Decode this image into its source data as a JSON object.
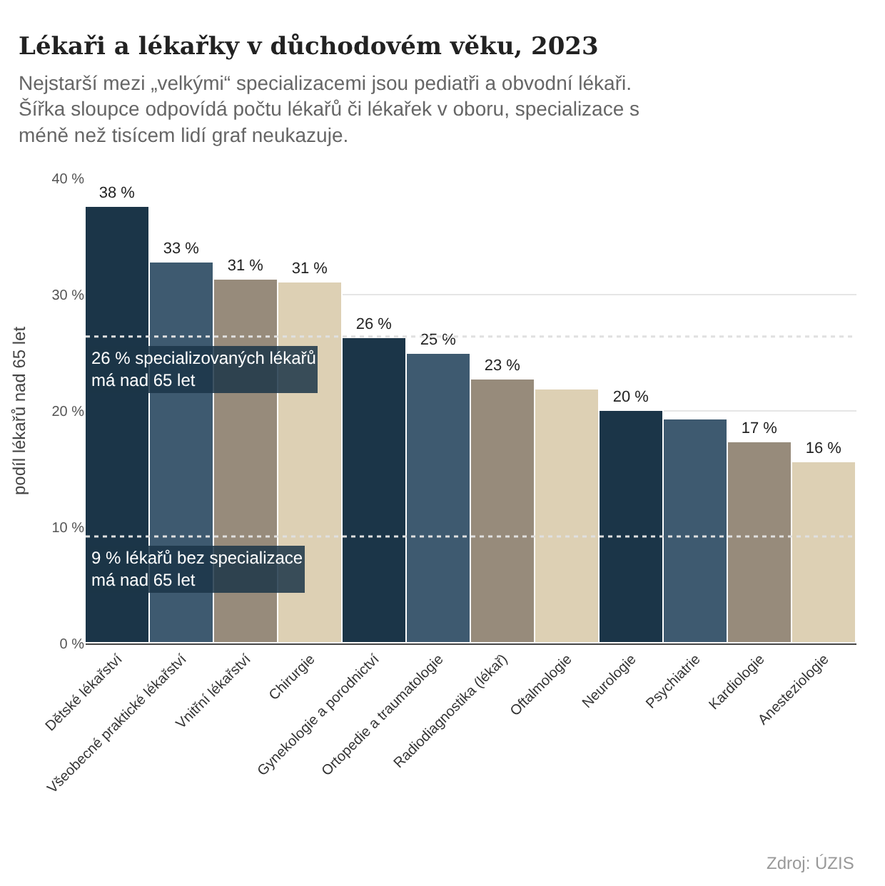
{
  "chart_data": {
    "type": "bar",
    "title": "Lékaři a lékařky v důchodovém věku, 2023",
    "subtitle": "Nejstarší mezi „velkými“ specializacemi jsou pediatři a obvodní lékaři. Šířka sloupce odpovídá počtu lékařů či lékařek v oboru, specializace s méně než tisícem lidí graf neukazuje.",
    "ylabel": "podíl lékařů nad 65 let",
    "categories": [
      "Dětské lékařství",
      "Všeobecné praktické lékařství",
      "Vnitřní lékařství",
      "Chirurgie",
      "Gynekologie a porodnictví",
      "Ortopedie a traumatologie",
      "Radiodiagnostika (lékař)",
      "Oftalmologie",
      "Neurologie",
      "Psychiatrie",
      "Kardiologie",
      "Anesteziologie"
    ],
    "values": [
      37.5,
      32.7,
      31.3,
      31.1,
      26.3,
      24.9,
      22.7,
      21.9,
      20.0,
      19.3,
      17.3,
      15.6
    ],
    "value_labels": [
      "38 %",
      "33 %",
      "31 %",
      "31 %",
      "26 %",
      "25 %",
      "23 %",
      null,
      "20 %",
      null,
      "17 %",
      "16 %"
    ],
    "colors": [
      "#1b3548",
      "#3e5a70",
      "#978b7b",
      "#ddd0b4",
      "#1b3548",
      "#3e5a70",
      "#978b7b",
      "#ddd0b4",
      "#1b3548",
      "#3e5a70",
      "#978b7b",
      "#ddd0b4"
    ],
    "ylim": [
      0,
      40
    ],
    "yticks": [
      {
        "value": 0,
        "label": "0 %"
      },
      {
        "value": 10,
        "label": "10 %"
      },
      {
        "value": 20,
        "label": "20 %"
      },
      {
        "value": 30,
        "label": "30 %"
      },
      {
        "value": 40,
        "label": "40 %"
      }
    ],
    "grid": "y",
    "ref_lines": [
      {
        "axis": "y",
        "value": 26.4,
        "label": "26 % specializovaných lékařů\nmá nad 65 let",
        "color": "#e0e0e0",
        "line_style": "dotted"
      },
      {
        "axis": "y",
        "value": 9.2,
        "label": "9 % lékařů bez specializace\nmá nad 65 let",
        "color": "#e0e0e0",
        "line_style": "dotted"
      }
    ],
    "annotations": [
      "Zdroj: ÚZIS"
    ]
  }
}
